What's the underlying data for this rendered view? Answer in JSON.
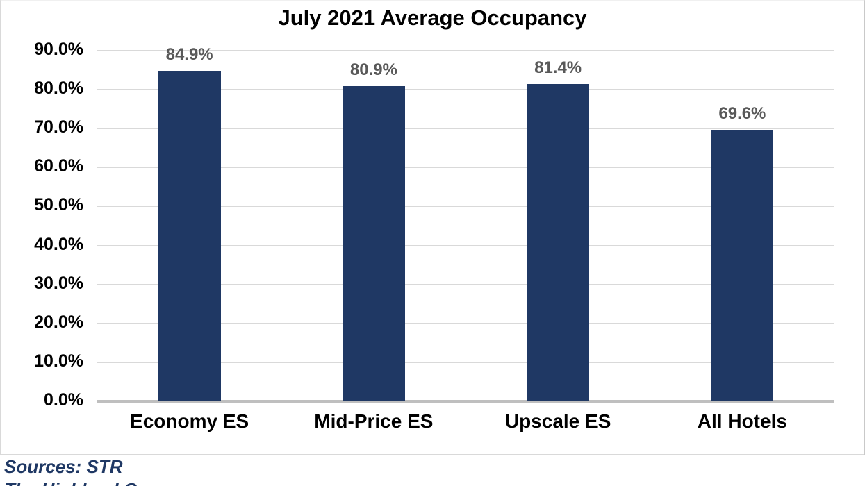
{
  "chart_data": {
    "type": "bar",
    "title": "July 2021 Average Occupancy",
    "categories": [
      "Economy ES",
      "Mid-Price ES",
      "Upscale ES",
      "All Hotels"
    ],
    "values": [
      84.9,
      80.9,
      81.4,
      69.6
    ],
    "data_labels": [
      "84.9%",
      "80.9%",
      "81.4%",
      "69.6%"
    ],
    "xlabel": "",
    "ylabel": "",
    "ylim": [
      0,
      90
    ],
    "ytick_step": 10,
    "ytick_labels": [
      "0.0%",
      "10.0%",
      "20.0%",
      "30.0%",
      "40.0%",
      "50.0%",
      "60.0%",
      "70.0%",
      "80.0%",
      "90.0%"
    ],
    "grid": true,
    "legend": false,
    "bar_color": "#1F3864",
    "gridline_color": "#D9D9D9",
    "axis_line_color": "#BFBFBF",
    "data_label_color": "#595959"
  },
  "footer": {
    "line1": "Sources: STR",
    "line2": "The Highland Group",
    "color": "#1F3864"
  }
}
